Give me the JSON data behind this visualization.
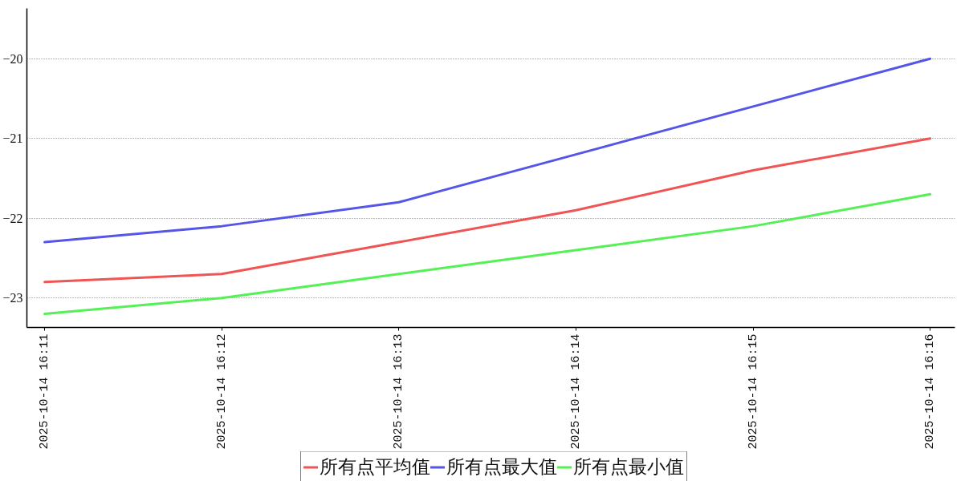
{
  "chart_data": {
    "type": "line",
    "categories": [
      "2025-10-14 16:11",
      "2025-10-14 16:12",
      "2025-10-14 16:13",
      "2025-10-14 16:14",
      "2025-10-14 16:15",
      "2025-10-14 16:16"
    ],
    "series": [
      {
        "name": "所有点平均值",
        "color": "#f05555",
        "values": [
          -22.8,
          -22.7,
          -22.3,
          -21.9,
          -21.4,
          -21.0
        ]
      },
      {
        "name": "所有点最大值",
        "color": "#5555e8",
        "values": [
          -22.3,
          -22.1,
          -21.8,
          -21.2,
          -20.6,
          -20.0
        ]
      },
      {
        "name": "所有点最小值",
        "color": "#55f055",
        "values": [
          -23.2,
          -23.0,
          -22.7,
          -22.4,
          -22.1,
          -21.7
        ]
      }
    ],
    "ylim": [
      -23.37,
      -19.37
    ],
    "yticks": [
      {
        "value": -23,
        "label": "−23"
      },
      {
        "value": -22,
        "label": "−22"
      },
      {
        "value": -21,
        "label": "−21"
      },
      {
        "value": -20,
        "label": "−20"
      }
    ],
    "grid": "y",
    "legend": "bottom",
    "line_style": "solid"
  }
}
